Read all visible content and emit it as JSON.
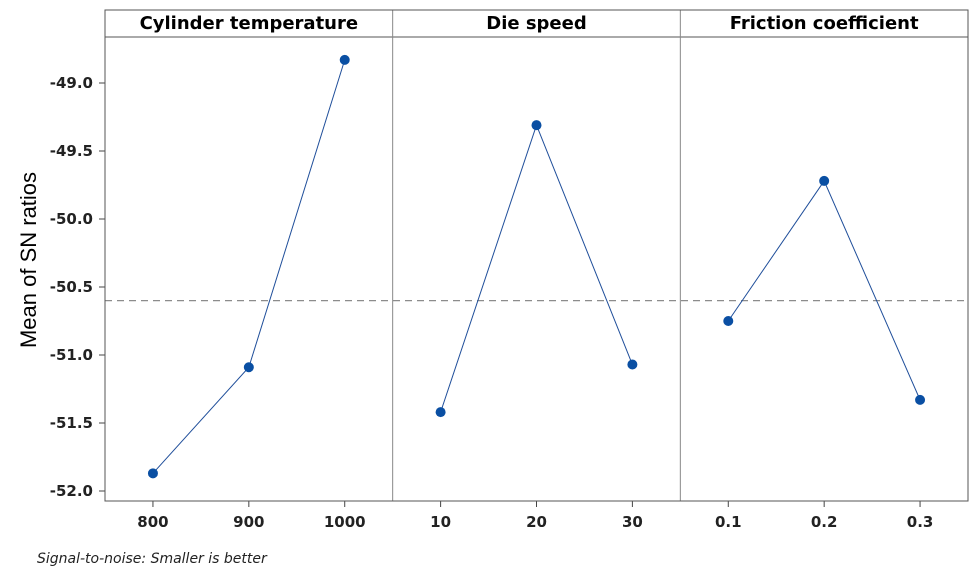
{
  "chart_data": {
    "type": "line",
    "ylabel": "Mean of SN ratios",
    "ylim": [
      -52.05,
      -48.7
    ],
    "yticks": [
      "-49.0",
      "-49.5",
      "-50.0",
      "-50.5",
      "-51.0",
      "-51.5",
      "-52.0"
    ],
    "ytick_values": [
      -49.0,
      -49.5,
      -50.0,
      -50.5,
      -51.0,
      -51.5,
      -52.0
    ],
    "reference_mean": -50.6,
    "line_color": "#1f4e9a",
    "marker_color": "#0a4fa3",
    "reference_color": "#8c8c8c",
    "panels": [
      {
        "title": "Cylinder temperature",
        "categories": [
          "800",
          "900",
          "1000"
        ],
        "values": [
          -51.87,
          -51.09,
          -48.83
        ]
      },
      {
        "title": "Die speed",
        "categories": [
          "10",
          "20",
          "30"
        ],
        "values": [
          -51.42,
          -49.31,
          -51.07
        ]
      },
      {
        "title": "Friction coefficient",
        "categories": [
          "0.1",
          "0.2",
          "0.3"
        ],
        "values": [
          -50.75,
          -49.72,
          -51.33
        ]
      }
    ]
  },
  "footnote": "Signal-to-noise: Smaller is better"
}
